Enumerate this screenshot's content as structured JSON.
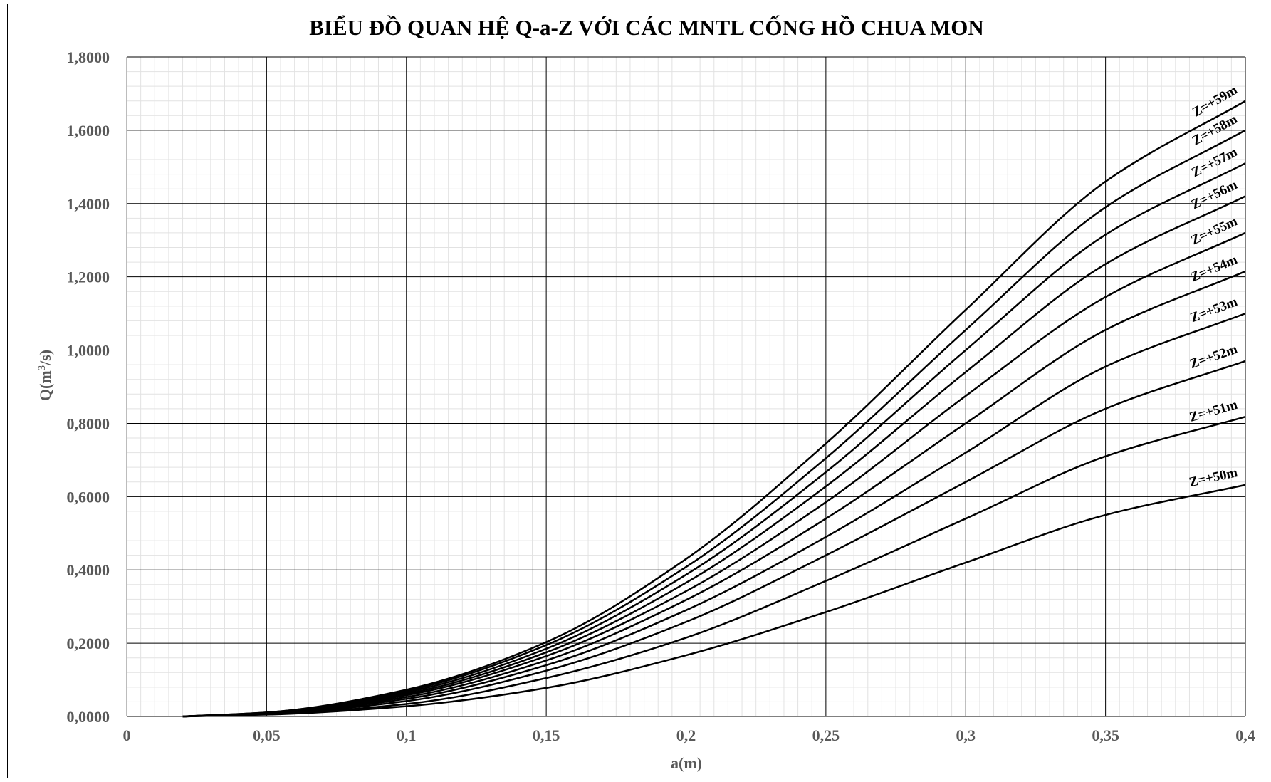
{
  "chart_data": {
    "type": "line",
    "title": "BIỂU ĐỒ QUAN HỆ Q-a-Z VỚI CÁC MNTL CỐNG HỒ CHUA MON",
    "xlabel": "a(m)",
    "ylabel": "Q(m3/s)",
    "ylabel_main": "Q(m",
    "ylabel_sup": "3",
    "ylabel_tail": "/s)",
    "xlim": [
      0,
      0.4
    ],
    "ylim": [
      0,
      1.8
    ],
    "x_ticks": [
      0,
      0.05,
      0.1,
      0.15,
      0.2,
      0.25,
      0.3,
      0.35,
      0.4
    ],
    "x_tick_labels": [
      "0",
      "0,05",
      "0,1",
      "0,15",
      "0,2",
      "0,25",
      "0,3",
      "0,35",
      "0,4"
    ],
    "y_ticks": [
      0,
      0.2,
      0.4,
      0.6,
      0.8,
      1.0,
      1.2,
      1.4,
      1.6,
      1.8
    ],
    "y_tick_labels": [
      "0,0000",
      "0,2000",
      "0,4000",
      "0,6000",
      "0,8000",
      "1,0000",
      "1,2000",
      "1,4000",
      "1,6000",
      "1,8000"
    ],
    "grid": true,
    "minor_grid": true,
    "legend": "none",
    "line_color": "#000000",
    "x": [
      0.02,
      0.05,
      0.1,
      0.15,
      0.2,
      0.25,
      0.3,
      0.35,
      0.4
    ],
    "series": [
      {
        "name": "Z=+50m",
        "values": [
          0,
          0.005,
          0.028,
          0.078,
          0.167,
          0.285,
          0.42,
          0.55,
          0.632
        ]
      },
      {
        "name": "Z=+51m",
        "values": [
          0,
          0.006,
          0.034,
          0.105,
          0.215,
          0.37,
          0.54,
          0.71,
          0.818
        ]
      },
      {
        "name": "Z=+52m",
        "values": [
          0,
          0.007,
          0.042,
          0.125,
          0.258,
          0.44,
          0.64,
          0.84,
          0.97
        ]
      },
      {
        "name": "Z=+53m",
        "values": [
          0,
          0.008,
          0.048,
          0.14,
          0.29,
          0.49,
          0.72,
          0.955,
          1.1
        ]
      },
      {
        "name": "Z=+54m",
        "values": [
          0,
          0.009,
          0.053,
          0.153,
          0.318,
          0.54,
          0.8,
          1.055,
          1.215
        ]
      },
      {
        "name": "Z=+55m",
        "values": [
          0,
          0.009,
          0.058,
          0.165,
          0.342,
          0.585,
          0.875,
          1.145,
          1.32
        ]
      },
      {
        "name": "Z=+56m",
        "values": [
          0,
          0.01,
          0.062,
          0.175,
          0.365,
          0.628,
          0.94,
          1.235,
          1.42
        ]
      },
      {
        "name": "Z=+57m",
        "values": [
          0,
          0.01,
          0.066,
          0.185,
          0.387,
          0.667,
          1.0,
          1.315,
          1.51
        ]
      },
      {
        "name": "Z=+58m",
        "values": [
          0,
          0.011,
          0.07,
          0.195,
          0.408,
          0.705,
          1.055,
          1.39,
          1.6
        ]
      },
      {
        "name": "Z=+59m",
        "values": [
          0,
          0.011,
          0.073,
          0.203,
          0.43,
          0.745,
          1.11,
          1.46,
          1.68
        ]
      }
    ]
  }
}
